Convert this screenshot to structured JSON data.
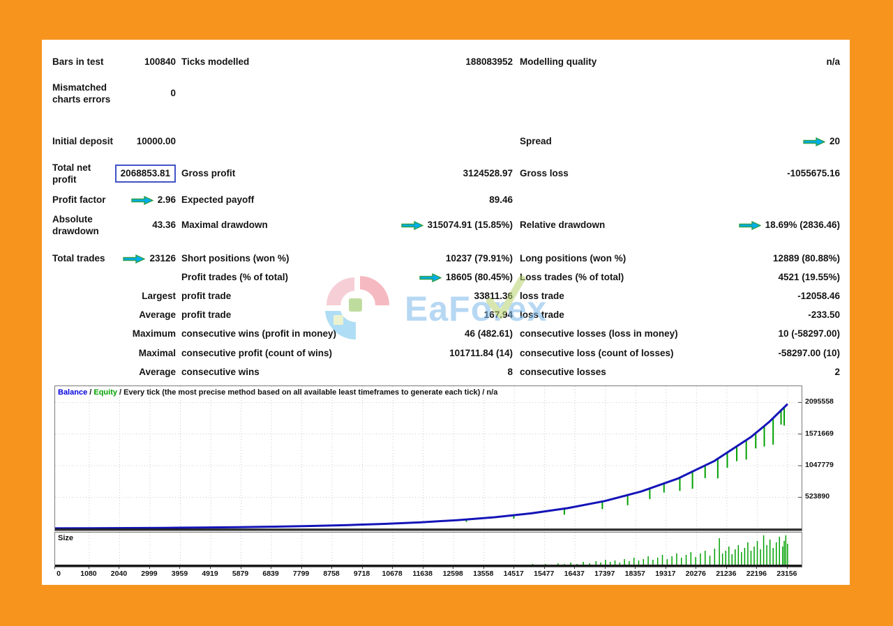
{
  "colors": {
    "frame_orange": "#F7941E",
    "panel_white": "#FFFFFF",
    "arrow_fill": "#00AEEF",
    "arrow_stroke": "#2E9E46",
    "balance_line": "#1414B8",
    "equity_line": "#00A000",
    "net_profit_box_border": "#4153C5",
    "grid": "#C9C9C9",
    "text": "#141414"
  },
  "report": {
    "rows": [
      {
        "top": 22,
        "h": 20,
        "l1": "Bars in test",
        "v1": "100840",
        "l2": "Ticks modelled",
        "v2": "188083952",
        "l3": "Modelling quality",
        "v3": "n/a"
      },
      {
        "top": 48,
        "h": 58,
        "l1": "Mismatched charts errors",
        "v1": "0"
      },
      {
        "top": 126,
        "h": 40,
        "l1": "Initial deposit",
        "v1": "10000.00",
        "l3": "Spread",
        "v3": "20",
        "a3": true
      },
      {
        "top": 172,
        "h": 40,
        "l1": "Total net profit",
        "v1": "2068853.81",
        "box1": true,
        "l2": "Gross profit",
        "v2": "3124528.97",
        "l3": "Gross loss",
        "v3": "-1055675.16"
      },
      {
        "top": 220,
        "h": 20,
        "l1": "Profit factor",
        "v1": "2.96",
        "a1": true,
        "l2": "Expected payoff",
        "v2": "89.46"
      },
      {
        "top": 246,
        "h": 40,
        "l1": "Absolute drawdown",
        "v1": "43.36",
        "l2": "Maximal drawdown",
        "v2": "315074.91 (15.85%)",
        "a2": true,
        "l3": "Relative drawdown",
        "v3": "18.69% (2836.46)",
        "a3": true
      },
      {
        "top": 304,
        "h": 20,
        "l1": "Total trades",
        "v1": "23126",
        "a1": true,
        "l2": "Short positions (won %)",
        "v2": "10237 (79.91%)",
        "l3": "Long positions (won %)",
        "v3": "12889 (80.88%)"
      },
      {
        "top": 331,
        "h": 20,
        "l2": "Profit trades (% of total)",
        "v2": "18605 (80.45%)",
        "a2": true,
        "l3": "Loss trades (% of total)",
        "v3": "4521 (19.55%)"
      },
      {
        "top": 358,
        "h": 20,
        "v1": "Largest",
        "l2": "profit trade",
        "v2": "33811.36",
        "l3": "loss trade",
        "v3": "-12058.46"
      },
      {
        "top": 385,
        "h": 20,
        "v1": "Average",
        "l2": "profit trade",
        "v2": "167.94",
        "l3": "loss trade",
        "v3": "-233.50"
      },
      {
        "top": 412,
        "h": 20,
        "v1": "Maximum",
        "l2": "consecutive wins (profit in money)",
        "v2": "46 (482.61)",
        "l3": "consecutive losses (loss in money)",
        "v3": "10 (-58297.00)"
      },
      {
        "top": 440,
        "h": 20,
        "v1": "Maximal",
        "l2": "consecutive profit (count of wins)",
        "v2": "101711.84 (14)",
        "l3": "consecutive loss (count of losses)",
        "v3": "-58297.00 (10)"
      },
      {
        "top": 467,
        "h": 20,
        "v1": "Average",
        "l2": "consecutive wins",
        "v2": "8",
        "l3": "consecutive losses",
        "v3": "2"
      }
    ]
  },
  "watermark": {
    "text": "EaForex"
  },
  "chart": {
    "legend": {
      "balance": "Balance",
      "sep": " / ",
      "equity": "Equity",
      "rest": " / Every tick (the most precise method based on all available least timeframes to generate each tick) / n/a"
    },
    "size_label": "Size"
  },
  "chart_data": {
    "type": "line",
    "title": "Balance / Equity strategy tester graph",
    "legend_entries": [
      "Balance",
      "Equity"
    ],
    "ylim": [
      -26000,
      2365000
    ],
    "x_plot_max": 23600,
    "y_ticks": [
      2095558,
      1571669,
      1047779,
      523890
    ],
    "y_tick_labels": [
      "2095558",
      "1571669",
      "1047779",
      "523890"
    ],
    "x_ticks": [
      0,
      1080,
      2040,
      2999,
      3959,
      4919,
      5879,
      6839,
      7799,
      8758,
      9718,
      10678,
      11638,
      12598,
      13558,
      14517,
      15477,
      16437,
      17397,
      18357,
      19317,
      20276,
      21236,
      22196,
      23156
    ],
    "x_tick_labels": [
      "0",
      "1080",
      "2040",
      "2999",
      "3959",
      "4919",
      "5879",
      "6839",
      "7799",
      "8758",
      "9718",
      "10678",
      "11638",
      "12598",
      "13558",
      "14517",
      "15477",
      "16437",
      "17397",
      "18357",
      "19317",
      "20276",
      "21236",
      "22196",
      "23156"
    ],
    "series": [
      {
        "name": "Balance",
        "points": [
          [
            0,
            10000
          ],
          [
            1158,
            11850
          ],
          [
            2316,
            14590
          ],
          [
            3473,
            18260
          ],
          [
            4631,
            23120
          ],
          [
            5789,
            29540
          ],
          [
            6947,
            38000
          ],
          [
            8105,
            49230
          ],
          [
            9262,
            64170
          ],
          [
            10420,
            84070
          ],
          [
            11578,
            110700
          ],
          [
            12736,
            146100
          ],
          [
            13894,
            193800
          ],
          [
            15051,
            257700
          ],
          [
            16209,
            344700
          ],
          [
            17367,
            461600
          ],
          [
            18525,
            619300
          ],
          [
            19683,
            833500
          ],
          [
            20840,
            1126000
          ],
          [
            21998,
            1523000
          ],
          [
            22578,
            1775000
          ],
          [
            23156,
            2068854
          ]
        ]
      }
    ],
    "equity_drawdown_spikes": [
      [
        13000,
        0.25
      ],
      [
        14500,
        0.25
      ],
      [
        16100,
        0.3
      ],
      [
        17300,
        0.28
      ],
      [
        18100,
        0.3
      ],
      [
        18800,
        0.26
      ],
      [
        19250,
        0.2
      ],
      [
        19750,
        0.26
      ],
      [
        20150,
        0.3
      ],
      [
        20550,
        0.2
      ],
      [
        20950,
        0.28
      ],
      [
        21250,
        0.2
      ],
      [
        21550,
        0.18
      ],
      [
        21850,
        0.22
      ],
      [
        22150,
        0.16
      ],
      [
        22420,
        0.2
      ],
      [
        22700,
        0.24
      ],
      [
        22950,
        0.12
      ],
      [
        23050,
        0.15
      ]
    ],
    "size_bars": [
      [
        9200,
        1
      ],
      [
        10100,
        1
      ],
      [
        11000,
        1
      ],
      [
        11800,
        1
      ],
      [
        12400,
        2
      ],
      [
        12900,
        1
      ],
      [
        13400,
        2
      ],
      [
        13900,
        1
      ],
      [
        14100,
        2
      ],
      [
        14300,
        1
      ],
      [
        14500,
        2
      ],
      [
        14700,
        1
      ],
      [
        14900,
        2
      ],
      [
        15100,
        3
      ],
      [
        15300,
        2
      ],
      [
        15500,
        3
      ],
      [
        15700,
        2
      ],
      [
        15900,
        4
      ],
      [
        16100,
        3
      ],
      [
        16300,
        5
      ],
      [
        16500,
        3
      ],
      [
        16700,
        6
      ],
      [
        16900,
        4
      ],
      [
        17100,
        7
      ],
      [
        17250,
        5
      ],
      [
        17400,
        9
      ],
      [
        17550,
        6
      ],
      [
        17700,
        8
      ],
      [
        17850,
        5
      ],
      [
        18000,
        10
      ],
      [
        18150,
        7
      ],
      [
        18300,
        12
      ],
      [
        18450,
        8
      ],
      [
        18600,
        10
      ],
      [
        18750,
        14
      ],
      [
        18900,
        9
      ],
      [
        19050,
        12
      ],
      [
        19200,
        16
      ],
      [
        19350,
        10
      ],
      [
        19500,
        14
      ],
      [
        19650,
        18
      ],
      [
        19800,
        12
      ],
      [
        19950,
        16
      ],
      [
        20100,
        20
      ],
      [
        20250,
        13
      ],
      [
        20400,
        18
      ],
      [
        20550,
        22
      ],
      [
        20700,
        15
      ],
      [
        20850,
        25
      ],
      [
        21000,
        40
      ],
      [
        21100,
        18
      ],
      [
        21200,
        22
      ],
      [
        21300,
        28
      ],
      [
        21400,
        17
      ],
      [
        21500,
        24
      ],
      [
        21600,
        30
      ],
      [
        21700,
        20
      ],
      [
        21800,
        26
      ],
      [
        21900,
        34
      ],
      [
        22000,
        22
      ],
      [
        22100,
        28
      ],
      [
        22200,
        36
      ],
      [
        22300,
        24
      ],
      [
        22400,
        44
      ],
      [
        22500,
        30
      ],
      [
        22600,
        38
      ],
      [
        22700,
        26
      ],
      [
        22800,
        34
      ],
      [
        22900,
        42
      ],
      [
        23000,
        28
      ],
      [
        23050,
        36
      ],
      [
        23100,
        44
      ],
      [
        23156,
        32
      ]
    ]
  }
}
